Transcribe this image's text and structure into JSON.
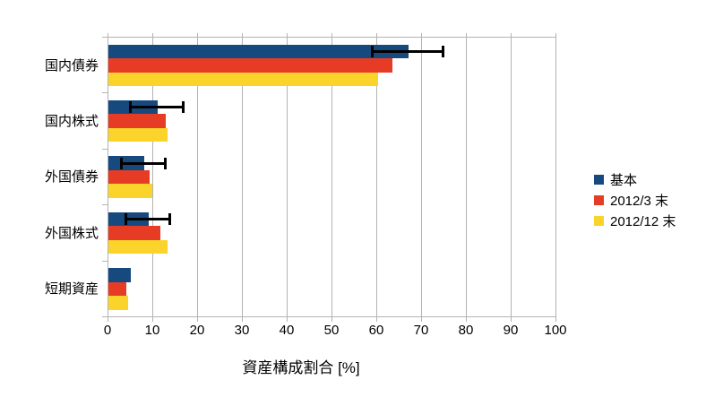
{
  "chart_data": {
    "type": "bar",
    "orientation": "horizontal",
    "title": "",
    "xlabel": "資産構成割合 [%]",
    "categories": [
      "国内債券",
      "国内株式",
      "外国債券",
      "外国株式",
      "短期資産"
    ],
    "series": [
      {
        "name": "基本",
        "color": "#164a7f",
        "values": [
          67,
          11,
          8,
          9,
          5
        ],
        "error_plus": [
          8,
          6,
          5,
          5,
          null
        ],
        "error_minus": [
          8,
          6,
          5,
          5,
          null
        ]
      },
      {
        "name": "2012/3 末",
        "color": "#e63c26",
        "values": [
          63.4,
          12.7,
          9.2,
          11.5,
          4.0
        ]
      },
      {
        "name": "2012/12 末",
        "color": "#fad32b",
        "values": [
          60.1,
          13.2,
          9.8,
          13.2,
          4.3
        ]
      }
    ],
    "xlim": [
      0,
      100
    ],
    "xticks": [
      0,
      10,
      20,
      30,
      40,
      50,
      60,
      70,
      80,
      90,
      100
    ],
    "grid": "vertical",
    "gridline_color": "#b3b3b3",
    "error_bar_color": "#000000",
    "legend_position": "right"
  }
}
